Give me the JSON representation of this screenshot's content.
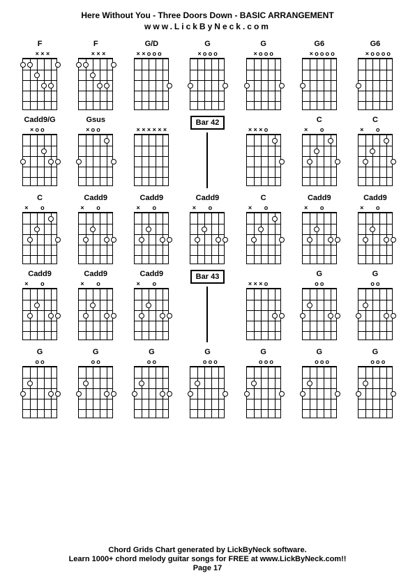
{
  "title": "Here Without You - Three Doors Down - BASIC ARRANGEMENT",
  "subtitle": "www.LickByNeck.com",
  "footer": {
    "line1": "Chord Grids Chart generated by LickByNeck software.",
    "line2": "Learn 1000+ chord melody guitar songs for FREE at www.LickByNeck.com!!",
    "line3": "Page 17"
  },
  "diagram": {
    "fretboard_width": 50,
    "fretboard_height": 75,
    "num_frets": 5,
    "num_strings": 6,
    "colors": {
      "background": "#ffffff",
      "line": "#000000",
      "text": "#000000",
      "dot_fill": "#ffffff",
      "dot_border": "#000000"
    },
    "font_sizes": {
      "title": 12,
      "chord_label": 11,
      "top_marks": 9,
      "footer": 11
    }
  },
  "chords": [
    {
      "label": "F",
      "type": "chord",
      "top": [
        "",
        "",
        "x",
        "x",
        "x",
        ""
      ],
      "dots": [
        [
          1,
          1
        ],
        [
          1,
          2
        ],
        [
          2,
          3
        ],
        [
          3,
          4
        ],
        [
          3,
          5
        ],
        [
          1,
          6
        ]
      ]
    },
    {
      "label": "F",
      "type": "chord",
      "top": [
        "",
        "",
        "x",
        "x",
        "x",
        ""
      ],
      "dots": [
        [
          1,
          1
        ],
        [
          1,
          2
        ],
        [
          2,
          3
        ],
        [
          3,
          4
        ],
        [
          3,
          5
        ],
        [
          1,
          6
        ]
      ]
    },
    {
      "label": "G/D",
      "type": "chord",
      "top": [
        "x",
        "x",
        "o",
        "o",
        "o",
        ""
      ],
      "dots": [
        [
          3,
          6
        ]
      ]
    },
    {
      "label": "G",
      "type": "chord",
      "top": [
        "",
        "x",
        "o",
        "o",
        "o",
        ""
      ],
      "dots": [
        [
          3,
          1
        ],
        [
          3,
          6
        ]
      ]
    },
    {
      "label": "G",
      "type": "chord",
      "top": [
        "",
        "x",
        "o",
        "o",
        "o",
        ""
      ],
      "dots": [
        [
          3,
          1
        ],
        [
          3,
          6
        ]
      ]
    },
    {
      "label": "G6",
      "type": "chord",
      "top": [
        "",
        "x",
        "o",
        "o",
        "o",
        "o"
      ],
      "dots": [
        [
          3,
          1
        ]
      ]
    },
    {
      "label": "G6",
      "type": "chord",
      "top": [
        "",
        "x",
        "o",
        "o",
        "o",
        "o"
      ],
      "dots": [
        [
          3,
          1
        ]
      ]
    },
    {
      "label": "Cadd9/G",
      "type": "chord",
      "top": [
        "",
        "x",
        "o",
        "o",
        "",
        ""
      ],
      "dots": [
        [
          3,
          1
        ],
        [
          2,
          4
        ],
        [
          3,
          5
        ],
        [
          3,
          6
        ]
      ]
    },
    {
      "label": "Gsus",
      "type": "chord",
      "top": [
        "",
        "x",
        "o",
        "o",
        "",
        ""
      ],
      "dots": [
        [
          3,
          1
        ],
        [
          1,
          5
        ],
        [
          3,
          6
        ]
      ]
    },
    {
      "label": "",
      "type": "chord",
      "top": [
        "x",
        "x",
        "x",
        "x",
        "x",
        "x"
      ],
      "dots": []
    },
    {
      "label": "Bar 42",
      "type": "bar"
    },
    {
      "label": "",
      "type": "chord",
      "top": [
        "x",
        "x",
        "x",
        "o",
        "",
        ""
      ],
      "dots": [
        [
          1,
          5
        ],
        [
          3,
          6
        ]
      ]
    },
    {
      "label": "C",
      "type": "chord",
      "top": [
        "x",
        "",
        "",
        "o",
        "",
        ""
      ],
      "dots": [
        [
          3,
          2
        ],
        [
          2,
          3
        ],
        [
          1,
          5
        ],
        [
          3,
          6
        ]
      ]
    },
    {
      "label": "C",
      "type": "chord",
      "top": [
        "x",
        "",
        "",
        "o",
        "",
        ""
      ],
      "dots": [
        [
          3,
          2
        ],
        [
          2,
          3
        ],
        [
          1,
          5
        ],
        [
          3,
          6
        ]
      ]
    },
    {
      "label": "C",
      "type": "chord",
      "top": [
        "x",
        "",
        "",
        "o",
        "",
        ""
      ],
      "dots": [
        [
          3,
          2
        ],
        [
          2,
          3
        ],
        [
          1,
          5
        ],
        [
          3,
          6
        ]
      ]
    },
    {
      "label": "Cadd9",
      "type": "chord",
      "top": [
        "x",
        "",
        "",
        "o",
        "",
        ""
      ],
      "dots": [
        [
          3,
          2
        ],
        [
          2,
          3
        ],
        [
          3,
          5
        ],
        [
          3,
          6
        ]
      ]
    },
    {
      "label": "Cadd9",
      "type": "chord",
      "top": [
        "x",
        "",
        "",
        "o",
        "",
        ""
      ],
      "dots": [
        [
          3,
          2
        ],
        [
          2,
          3
        ],
        [
          3,
          5
        ],
        [
          3,
          6
        ]
      ]
    },
    {
      "label": "Cadd9",
      "type": "chord",
      "top": [
        "x",
        "",
        "",
        "o",
        "",
        ""
      ],
      "dots": [
        [
          3,
          2
        ],
        [
          2,
          3
        ],
        [
          3,
          5
        ],
        [
          3,
          6
        ]
      ]
    },
    {
      "label": "C",
      "type": "chord",
      "top": [
        "x",
        "",
        "",
        "o",
        "",
        ""
      ],
      "dots": [
        [
          3,
          2
        ],
        [
          2,
          3
        ],
        [
          1,
          5
        ],
        [
          3,
          6
        ]
      ]
    },
    {
      "label": "Cadd9",
      "type": "chord",
      "top": [
        "x",
        "",
        "",
        "o",
        "",
        ""
      ],
      "dots": [
        [
          3,
          2
        ],
        [
          2,
          3
        ],
        [
          3,
          5
        ],
        [
          3,
          6
        ]
      ]
    },
    {
      "label": "Cadd9",
      "type": "chord",
      "top": [
        "x",
        "",
        "",
        "o",
        "",
        ""
      ],
      "dots": [
        [
          3,
          2
        ],
        [
          2,
          3
        ],
        [
          3,
          5
        ],
        [
          3,
          6
        ]
      ]
    },
    {
      "label": "Cadd9",
      "type": "chord",
      "top": [
        "x",
        "",
        "",
        "o",
        "",
        ""
      ],
      "dots": [
        [
          3,
          2
        ],
        [
          2,
          3
        ],
        [
          3,
          5
        ],
        [
          3,
          6
        ]
      ]
    },
    {
      "label": "Cadd9",
      "type": "chord",
      "top": [
        "x",
        "",
        "",
        "o",
        "",
        ""
      ],
      "dots": [
        [
          3,
          2
        ],
        [
          2,
          3
        ],
        [
          3,
          5
        ],
        [
          3,
          6
        ]
      ]
    },
    {
      "label": "Cadd9",
      "type": "chord",
      "top": [
        "x",
        "",
        "",
        "o",
        "",
        ""
      ],
      "dots": [
        [
          3,
          2
        ],
        [
          2,
          3
        ],
        [
          3,
          5
        ],
        [
          3,
          6
        ]
      ]
    },
    {
      "label": "Bar 43",
      "type": "bar"
    },
    {
      "label": "",
      "type": "chord",
      "top": [
        "x",
        "x",
        "x",
        "o",
        "",
        ""
      ],
      "dots": [
        [
          3,
          5
        ],
        [
          3,
          6
        ]
      ]
    },
    {
      "label": "G",
      "type": "chord",
      "top": [
        "",
        "",
        "o",
        "o",
        "",
        ""
      ],
      "dots": [
        [
          3,
          1
        ],
        [
          2,
          2
        ],
        [
          3,
          5
        ],
        [
          3,
          6
        ]
      ]
    },
    {
      "label": "G",
      "type": "chord",
      "top": [
        "",
        "",
        "o",
        "o",
        "",
        ""
      ],
      "dots": [
        [
          3,
          1
        ],
        [
          2,
          2
        ],
        [
          3,
          5
        ],
        [
          3,
          6
        ]
      ]
    },
    {
      "label": "G",
      "type": "chord",
      "top": [
        "",
        "",
        "o",
        "o",
        "",
        ""
      ],
      "dots": [
        [
          3,
          1
        ],
        [
          2,
          2
        ],
        [
          3,
          5
        ],
        [
          3,
          6
        ]
      ]
    },
    {
      "label": "G",
      "type": "chord",
      "top": [
        "",
        "",
        "o",
        "o",
        "",
        ""
      ],
      "dots": [
        [
          3,
          1
        ],
        [
          2,
          2
        ],
        [
          3,
          5
        ],
        [
          3,
          6
        ]
      ]
    },
    {
      "label": "G",
      "type": "chord",
      "top": [
        "",
        "",
        "o",
        "o",
        "",
        ""
      ],
      "dots": [
        [
          3,
          1
        ],
        [
          2,
          2
        ],
        [
          3,
          5
        ],
        [
          3,
          6
        ]
      ]
    },
    {
      "label": "G",
      "type": "chord",
      "top": [
        "",
        "",
        "o",
        "o",
        "o",
        ""
      ],
      "dots": [
        [
          3,
          1
        ],
        [
          2,
          2
        ],
        [
          3,
          6
        ]
      ]
    },
    {
      "label": "G",
      "type": "chord",
      "top": [
        "",
        "",
        "o",
        "o",
        "o",
        ""
      ],
      "dots": [
        [
          3,
          1
        ],
        [
          2,
          2
        ],
        [
          3,
          6
        ]
      ]
    },
    {
      "label": "G",
      "type": "chord",
      "top": [
        "",
        "",
        "o",
        "o",
        "o",
        ""
      ],
      "dots": [
        [
          3,
          1
        ],
        [
          2,
          2
        ],
        [
          3,
          6
        ]
      ]
    },
    {
      "label": "G",
      "type": "chord",
      "top": [
        "",
        "",
        "o",
        "o",
        "o",
        ""
      ],
      "dots": [
        [
          3,
          1
        ],
        [
          2,
          2
        ],
        [
          3,
          6
        ]
      ]
    }
  ]
}
